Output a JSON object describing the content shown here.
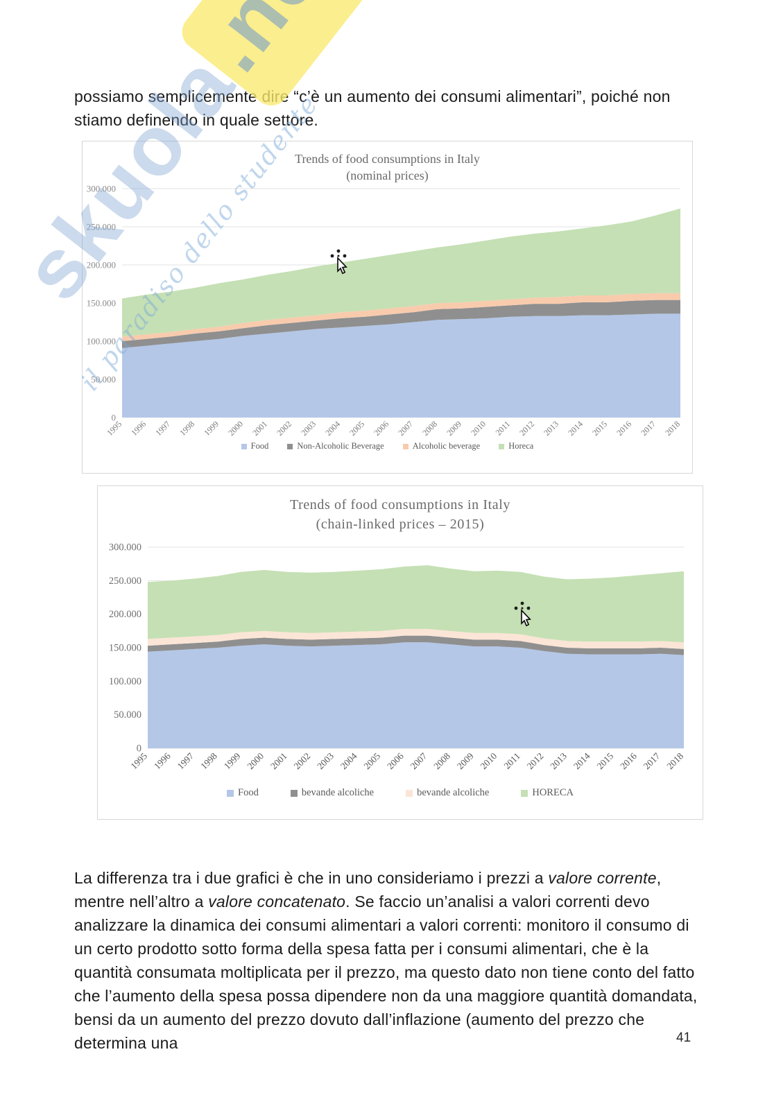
{
  "page": {
    "number": "41"
  },
  "watermark": {
    "brand": "skuola",
    "brand_suffix": ".net",
    "tagline": "il paradiso dello studente"
  },
  "paragraph_top": "possiamo semplicemente dire “c’è un aumento dei consumi alimentari”, poiché non stiamo definendo in quale settore.",
  "paragraph_bottom_segments": [
    {
      "text": "La differenza tra i due grafici è che in uno consideriamo i prezzi a ",
      "italic": false
    },
    {
      "text": "valore corrente",
      "italic": true
    },
    {
      "text": ", mentre nell’altro a ",
      "italic": false
    },
    {
      "text": "valore concatenato",
      "italic": true
    },
    {
      "text": ". Se faccio un’analisi a valori correnti devo analizzare la dinamica dei consumi alimentari a valori correnti: monitoro il consumo di un certo prodotto sotto forma della spesa fatta per i consumi alimentari, che è la quantità consumata moltiplicata per il prezzo, ma questo dato non tiene conto del fatto che l’aumento della spesa possa dipendere non da una maggiore quantità domandata, bensi da un aumento del prezzo dovuto dall’inflazione (aumento del prezzo che determina una",
      "italic": false
    }
  ],
  "chart_data": [
    {
      "type": "area",
      "stacked": true,
      "title": "Trends of food consumptions in Italy",
      "subtitle": "(nominal prices)",
      "xlabel": "",
      "ylabel": "",
      "grid": true,
      "legend_position": "bottom",
      "ylim": [
        0,
        300000
      ],
      "yticks": [
        0,
        50000,
        100000,
        150000,
        200000,
        250000,
        300000
      ],
      "ytick_labels": [
        "0",
        "50.000",
        "100.000",
        "150.000",
        "200.000",
        "250.000",
        "300.000"
      ],
      "x": [
        "1995",
        "1996",
        "1997",
        "1998",
        "1999",
        "2000",
        "2001",
        "2002",
        "2003",
        "2004",
        "2005",
        "2006",
        "2007",
        "2008",
        "2009",
        "2010",
        "2011",
        "2012",
        "2013",
        "2014",
        "2015",
        "2016",
        "2017",
        "2018"
      ],
      "series": [
        {
          "name": "Food",
          "color": "#b4c7e7",
          "values": [
            91000,
            94000,
            97000,
            100000,
            103000,
            107000,
            110000,
            113000,
            116000,
            118000,
            120000,
            122000,
            125000,
            128000,
            129000,
            130000,
            132000,
            133000,
            133000,
            134000,
            134000,
            135000,
            136000,
            136000
          ]
        },
        {
          "name": "Non-Alcoholic Beverage",
          "color": "#8f8f8f",
          "values": [
            9000,
            9000,
            9000,
            10000,
            10000,
            10000,
            11000,
            11000,
            11000,
            12000,
            12000,
            13000,
            13000,
            14000,
            14000,
            15000,
            15000,
            16000,
            16000,
            17000,
            17000,
            18000,
            18000,
            18000
          ]
        },
        {
          "name": "Alcoholic beverage",
          "color": "#f8cbad",
          "values": [
            6000,
            6000,
            6000,
            6000,
            6000,
            7000,
            7000,
            7000,
            7000,
            8000,
            8000,
            8000,
            8000,
            8000,
            8000,
            8000,
            8000,
            8000,
            9000,
            9000,
            9000,
            9000,
            9000,
            9000
          ]
        },
        {
          "name": "Horeca",
          "color": "#c5e0b4",
          "values": [
            50000,
            52000,
            53000,
            54000,
            57000,
            57000,
            59000,
            61000,
            64000,
            65000,
            68000,
            70000,
            72000,
            73000,
            76000,
            79000,
            82000,
            84000,
            86000,
            88000,
            92000,
            95000,
            102000,
            111000
          ]
        }
      ]
    },
    {
      "type": "area",
      "stacked": true,
      "title": "Trends of food consumptions in Italy",
      "subtitle": "(chain-linked prices – 2015)",
      "xlabel": "",
      "ylabel": "",
      "grid": true,
      "legend_position": "bottom",
      "ylim": [
        0,
        300000
      ],
      "yticks": [
        0,
        50000,
        100000,
        150000,
        200000,
        250000,
        300000
      ],
      "ytick_labels": [
        "0",
        "50.000",
        "100.000",
        "150.000",
        "200.000",
        "250.000",
        "300.000"
      ],
      "x": [
        "1995",
        "1996",
        "1997",
        "1998",
        "1999",
        "2000",
        "2001",
        "2002",
        "2003",
        "2004",
        "2005",
        "2006",
        "2007",
        "2008",
        "2009",
        "2010",
        "2011",
        "2012",
        "2013",
        "2014",
        "2015",
        "2016",
        "2017",
        "2018"
      ],
      "series": [
        {
          "name": "Food",
          "color": "#b4c7e7",
          "values": [
            144000,
            146000,
            148000,
            150000,
            153000,
            155000,
            153000,
            152000,
            153000,
            154000,
            155000,
            158000,
            158000,
            155000,
            152000,
            152000,
            150000,
            145000,
            141000,
            140000,
            140000,
            140000,
            141000,
            139000
          ]
        },
        {
          "name": "bevande alcoliche",
          "color": "#8f8f8f",
          "values": [
            9000,
            9000,
            9000,
            9000,
            10000,
            10000,
            10000,
            10000,
            10000,
            10000,
            10000,
            10000,
            10000,
            10000,
            10000,
            10000,
            10000,
            9000,
            9000,
            9000,
            9000,
            9000,
            9000,
            9000
          ]
        },
        {
          "name": "bevande alcoliche",
          "color": "#fbe5d6",
          "values": [
            10000,
            10000,
            10000,
            10000,
            10000,
            10000,
            10000,
            10000,
            10000,
            10000,
            10000,
            10000,
            10000,
            10000,
            10000,
            10000,
            10000,
            10000,
            10000,
            10000,
            10000,
            10000,
            10000,
            10000
          ]
        },
        {
          "name": "HORECA",
          "color": "#c5e0b4",
          "values": [
            85000,
            85000,
            86000,
            88000,
            90000,
            91000,
            90000,
            90000,
            90000,
            91000,
            92000,
            93000,
            95000,
            93000,
            92000,
            93000,
            93000,
            92000,
            92000,
            94000,
            96000,
            99000,
            101000,
            106000
          ]
        }
      ]
    }
  ]
}
